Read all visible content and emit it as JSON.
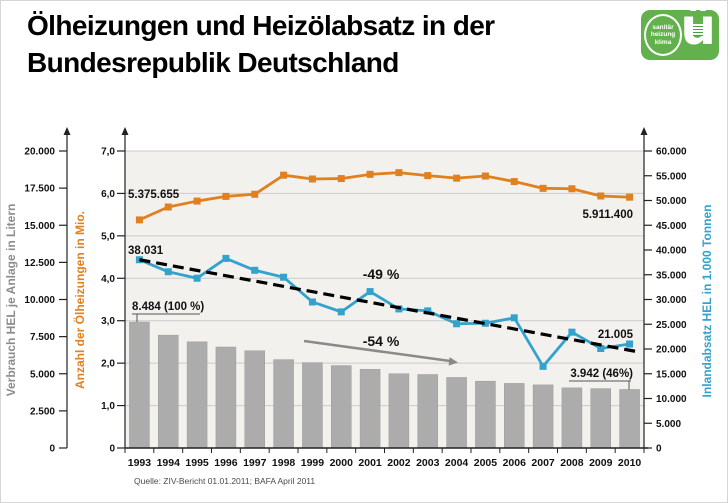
{
  "header": {
    "title_line1": "Ölheizungen und Heizölabsatz in der",
    "title_line2": "Bundesrepublik Deutschland"
  },
  "logo": {
    "badge_lines": [
      "sanitär",
      "heizung",
      "klima"
    ],
    "glyph": "ü",
    "color": "#62b14c"
  },
  "footer": {
    "source": "Quelle: ZIV-Bericht 01.01.2011; BAFA April 2011"
  },
  "chart_data": {
    "type": "combo bar + 2 lines",
    "categories": [
      "1993",
      "1994",
      "1995",
      "1996",
      "1997",
      "1998",
      "1999",
      "2000",
      "2001",
      "2002",
      "2003",
      "2004",
      "2005",
      "2006",
      "2007",
      "2008",
      "2009",
      "2010"
    ],
    "series": [
      {
        "name": "Verbrauch HEL je Anlage in Litern",
        "type": "bar",
        "axis": "left_liters",
        "color": "#acacac",
        "values": [
          8484,
          7600,
          7150,
          6800,
          6550,
          5950,
          5750,
          5550,
          5300,
          5000,
          4950,
          4750,
          4500,
          4350,
          4250,
          4050,
          4000,
          3942
        ]
      },
      {
        "name": "Anzahl der Ölheizungen in Mio.",
        "type": "line",
        "axis": "left_millions",
        "color": "#e0801f",
        "values": [
          5.376,
          5.68,
          5.82,
          5.93,
          5.98,
          6.43,
          6.34,
          6.35,
          6.45,
          6.49,
          6.42,
          6.36,
          6.41,
          6.28,
          6.12,
          6.11,
          5.94,
          5.911
        ]
      },
      {
        "name": "Inlandabsatz HEL in 1.000 Tonnen",
        "type": "line",
        "axis": "right_tonnes",
        "color": "#33a2cc",
        "values": [
          38031,
          35600,
          34300,
          38300,
          35900,
          34500,
          29500,
          27500,
          31600,
          28100,
          27700,
          25100,
          25200,
          26300,
          16500,
          23400,
          20100,
          21005
        ]
      }
    ],
    "axes": {
      "left_liters": {
        "label": "Verbrauch HEL je Anlage in Litern",
        "min": 0,
        "max": 20000,
        "step": 2500,
        "color": "#8c8c8c",
        "ticks": [
          "0",
          "2.500",
          "5.000",
          "7.500",
          "10.000",
          "12.500",
          "15.000",
          "17.500",
          "20.000"
        ]
      },
      "left_millions": {
        "label": "Anzahl der Ölheizungen in Mio.",
        "min": 0,
        "max": 7,
        "step": 1,
        "color": "#e0801f",
        "ticks": [
          "0",
          "1,0",
          "2,0",
          "3,0",
          "4,0",
          "5,0",
          "6,0",
          "7,0"
        ]
      },
      "right_tonnes": {
        "label": "Inlandabsatz HEL in 1.000 Tonnen",
        "min": 0,
        "max": 60000,
        "step": 5000,
        "color": "#33a2cc",
        "ticks": [
          "0",
          "5.000",
          "10.000",
          "15.000",
          "20.000",
          "25.000",
          "30.000",
          "35.000",
          "40.000",
          "45.000",
          "50.000",
          "55.000",
          "60.000"
        ]
      }
    },
    "annotations": {
      "first_heatings": "5.375.655",
      "last_heatings": "5.911.400",
      "first_sales": "38.031",
      "last_sales": "21.005",
      "first_bar": "8.484 (100 %)",
      "last_bar": "3.942 (46%)",
      "trend_sales_label": "-49 %",
      "trend_consumption_label": "-54 %"
    },
    "trend_sales": {
      "start_year": "1993",
      "start_value": 38031,
      "end_year": "2010",
      "end_value": 19400,
      "style": "black dashed"
    },
    "gridlines": "horizontal, every 1.0 Mio. unit",
    "legend_position": "none",
    "plot_background": "#f2f1ee"
  }
}
